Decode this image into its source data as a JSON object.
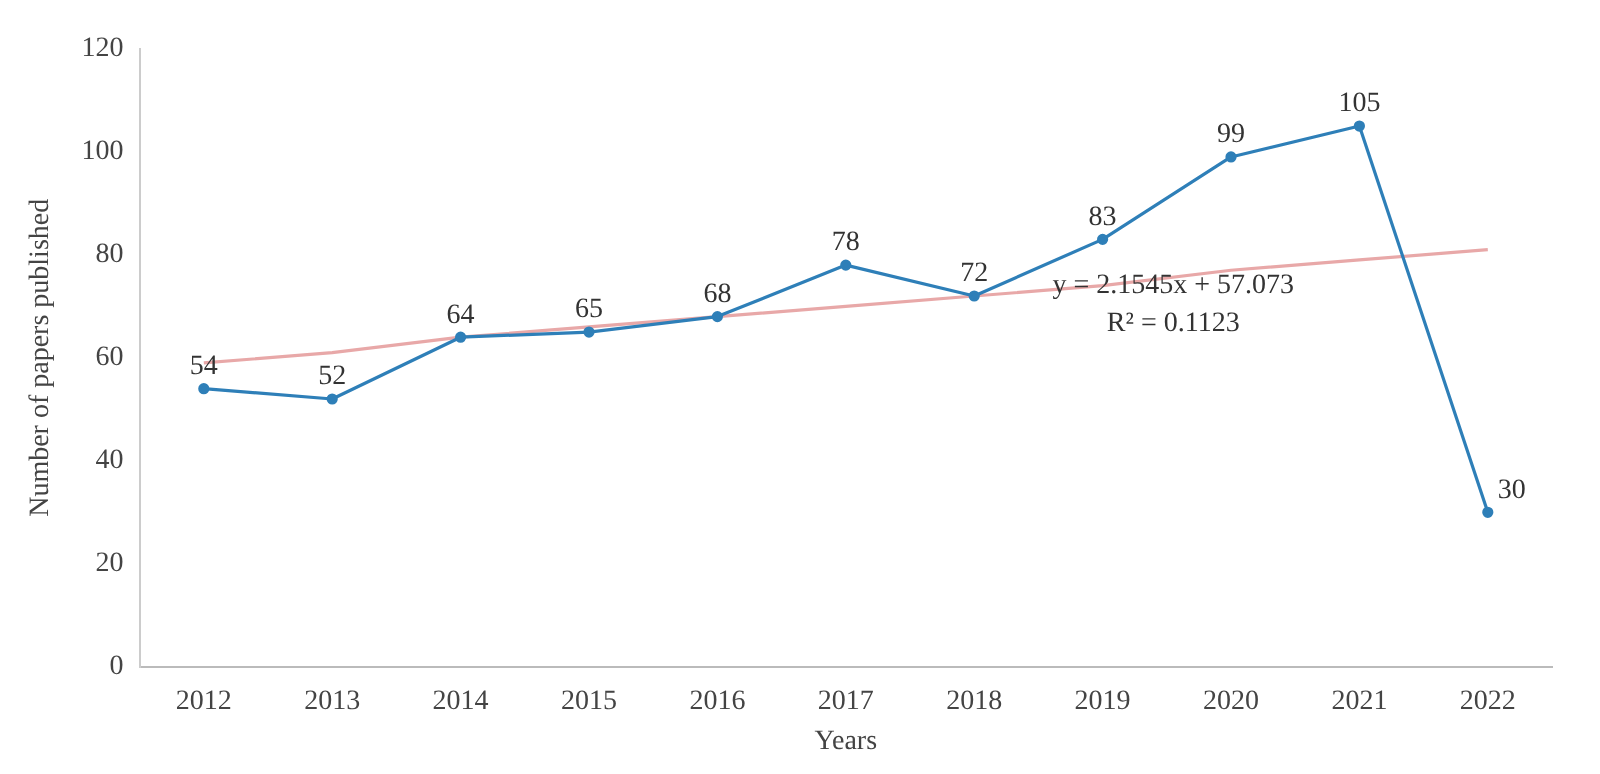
{
  "chart_data": {
    "type": "line",
    "xlabel": "Years",
    "ylabel": "Number of papers published",
    "categories": [
      "2012",
      "2013",
      "2014",
      "2015",
      "2016",
      "2017",
      "2018",
      "2019",
      "2020",
      "2021",
      "2022"
    ],
    "series": [
      {
        "color": "#2e7fb8",
        "values": [
          54,
          52,
          64,
          65,
          68,
          78,
          72,
          83,
          99,
          105,
          30
        ],
        "marker": "circle",
        "data_labels": true
      },
      {
        "color": "#e8a8a8",
        "values": [
          59,
          61,
          64,
          66,
          68,
          70,
          72,
          74,
          77,
          79,
          81
        ],
        "marker": "none"
      }
    ],
    "ylim": [
      0,
      120
    ],
    "yticks": [
      0,
      20,
      40,
      60,
      80,
      100,
      120
    ],
    "grid": false,
    "legend": false,
    "annotations": [
      "y = 2.1545x + 57.073",
      "R² = 0.1123"
    ]
  }
}
